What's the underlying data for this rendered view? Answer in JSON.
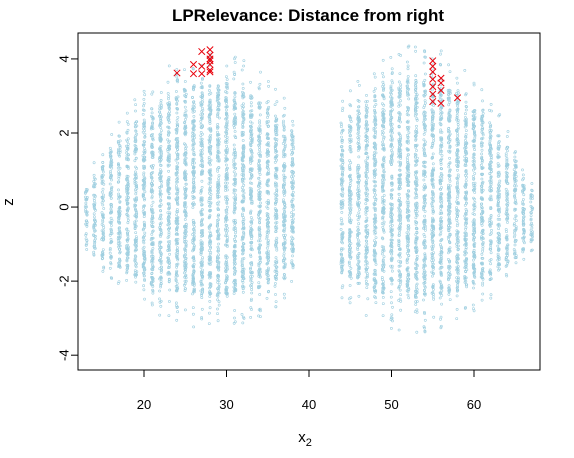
{
  "chart_data": {
    "type": "scatter",
    "title": "LPRelevance: Distance from right",
    "xlabel": "x",
    "xlabel_subscript": "2",
    "ylabel": "z",
    "xlim": [
      12,
      68
    ],
    "ylim": [
      -4.4,
      4.7
    ],
    "x_ticks": [
      20,
      30,
      40,
      50,
      60
    ],
    "y_ticks": [
      -4,
      -2,
      0,
      2,
      4
    ],
    "grid": false,
    "colors": {
      "background_points": "#9fcfe0",
      "highlight_points": "#e8000b"
    },
    "background_series": {
      "marker": "circle",
      "clusters": [
        {
          "x_min": 13,
          "x_max": 38,
          "x_peak": 28,
          "z_top_at_peak": 4.2,
          "z_bottom_at_peak": -3.3,
          "z_top_at_edges": 0.8,
          "z_bottom_at_edges": -1.3
        },
        {
          "x_min": 44,
          "x_max": 67,
          "x_peak": 53,
          "z_top_at_peak": 4.4,
          "z_bottom_at_peak": -3.4,
          "z_top_at_edges": 0.7,
          "z_bottom_at_edges": -1.2
        }
      ]
    },
    "highlight_series": {
      "marker": "x",
      "points": [
        [
          24,
          3.62
        ],
        [
          26,
          3.6
        ],
        [
          26,
          3.85
        ],
        [
          27,
          3.6
        ],
        [
          27,
          3.8
        ],
        [
          27,
          4.2
        ],
        [
          28,
          3.65
        ],
        [
          28,
          3.85
        ],
        [
          28,
          4.0
        ],
        [
          28,
          4.1
        ],
        [
          28,
          4.25
        ],
        [
          28,
          3.7
        ],
        [
          28,
          3.95
        ],
        [
          55,
          2.85
        ],
        [
          55,
          3.05
        ],
        [
          55,
          3.25
        ],
        [
          55,
          3.45
        ],
        [
          55,
          3.65
        ],
        [
          55,
          3.8
        ],
        [
          55,
          3.95
        ],
        [
          56,
          2.8
        ],
        [
          56,
          3.15
        ],
        [
          56,
          3.35
        ],
        [
          56,
          3.48
        ],
        [
          58,
          2.95
        ]
      ]
    }
  }
}
